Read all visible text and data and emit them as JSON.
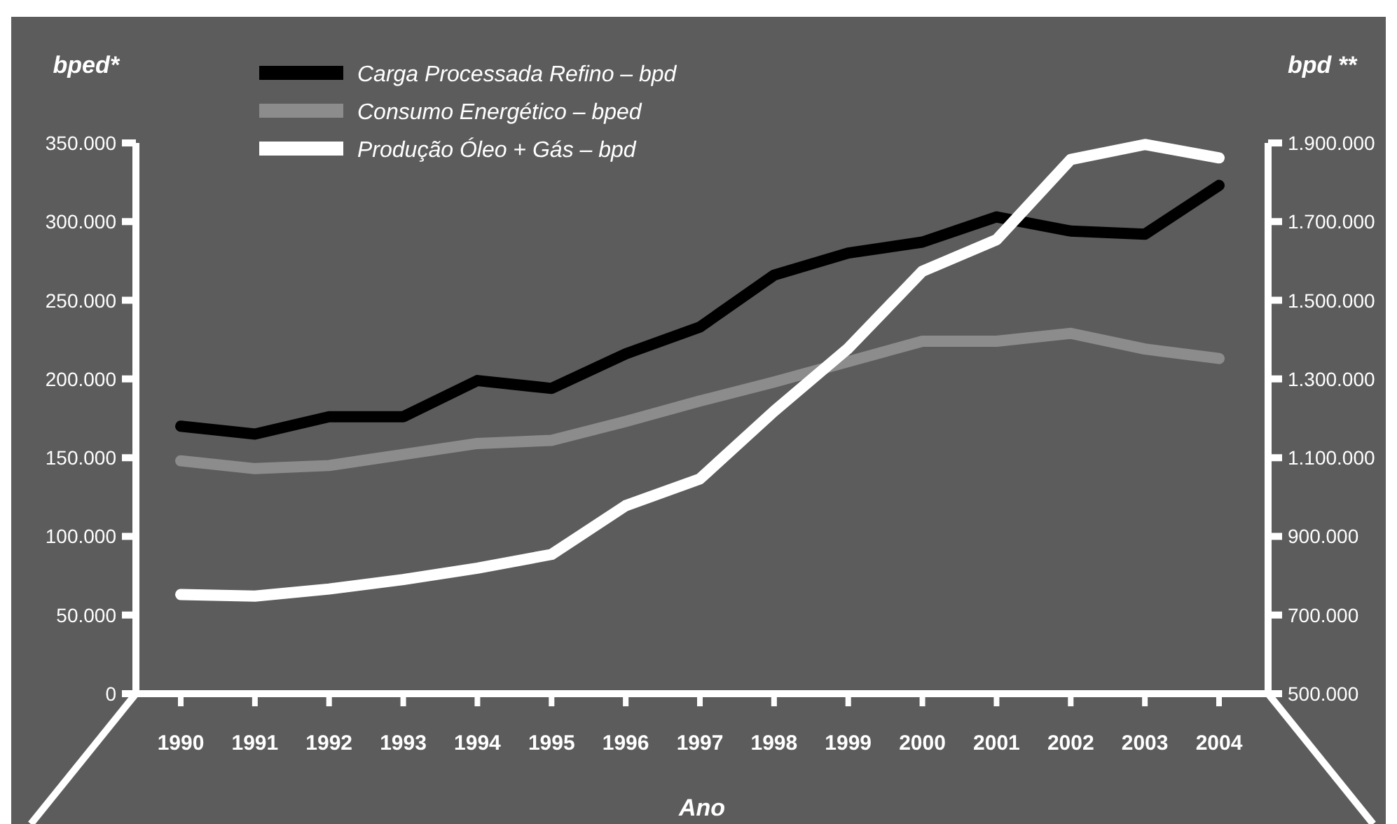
{
  "chart_data": {
    "type": "line",
    "xlabel": "Ano",
    "ylabel": "bped*",
    "y2label": "bpd **",
    "categories": [
      "1990",
      "1991",
      "1992",
      "1993",
      "1994",
      "1995",
      "1996",
      "1997",
      "1998",
      "1999",
      "2000",
      "2001",
      "2002",
      "2003",
      "2004"
    ],
    "series": [
      {
        "name": "Carga Processada Refino – bpd",
        "color": "#000000",
        "values": [
          170000,
          165000,
          176000,
          176000,
          199000,
          194000,
          216000,
          233000,
          266000,
          280000,
          287000,
          303000,
          294000,
          292000,
          323000
        ]
      },
      {
        "name": "Consumo Energético – bped",
        "color": "#8c8c8c",
        "values": [
          148000,
          143000,
          145000,
          152000,
          159000,
          161000,
          173000,
          186000,
          198000,
          211000,
          224000,
          224000,
          229000,
          219000,
          213000
        ]
      },
      {
        "name": "Produção Óleo + Gás – bpd",
        "color": "#ffffff",
        "axis": "y2",
        "values": [
          752000,
          748000,
          766000,
          790000,
          819000,
          854000,
          978000,
          1046000,
          1218000,
          1378000,
          1574000,
          1654000,
          1858000,
          1896000,
          1862000
        ]
      }
    ],
    "ylim": [
      0,
      350000
    ],
    "yticks": [
      0,
      {
        "value": 50000,
        "label": "50.000"
      },
      {
        "value": 100000,
        "label": "100.000"
      },
      {
        "value": 150000,
        "label": "150.000"
      },
      {
        "value": 200000,
        "label": "200.000"
      },
      {
        "value": 250000,
        "label": "250.000"
      },
      {
        "value": 300000,
        "label": "300.000"
      },
      {
        "value": 350000,
        "label": "350.000"
      }
    ],
    "y2lim": [
      500000,
      1900000
    ],
    "y2ticks": [
      {
        "value": 500000,
        "label": "500.000"
      },
      {
        "value": 700000,
        "label": "700.000"
      },
      {
        "value": 900000,
        "label": "900.000"
      },
      {
        "value": 1100000,
        "label": "1.100.000"
      },
      {
        "value": 1300000,
        "label": "1.300.000"
      },
      {
        "value": 1500000,
        "label": "1.500.000"
      },
      {
        "value": 1700000,
        "label": "1.700.000"
      },
      {
        "value": 1900000,
        "label": "1.900.000"
      }
    ],
    "grid": false,
    "legend": "top left",
    "marker": "none",
    "line_style": "solid"
  }
}
